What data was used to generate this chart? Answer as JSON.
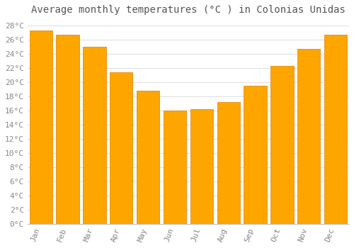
{
  "title": "Average monthly temperatures (°C ) in Colonias Unidas",
  "months": [
    "Jan",
    "Feb",
    "Mar",
    "Apr",
    "May",
    "Jun",
    "Jul",
    "Aug",
    "Sep",
    "Oct",
    "Nov",
    "Dec"
  ],
  "values": [
    27.3,
    26.7,
    25.0,
    21.4,
    18.8,
    16.0,
    16.2,
    17.2,
    19.5,
    22.3,
    24.7,
    26.7
  ],
  "bar_color": "#FFA500",
  "bar_edge_color": "#E08000",
  "background_color": "#FFFFFF",
  "grid_color": "#DDDDDD",
  "ylim": [
    0,
    29
  ],
  "title_fontsize": 10,
  "tick_fontsize": 8,
  "font_family": "monospace",
  "label_color": "#888888",
  "title_color": "#555555"
}
